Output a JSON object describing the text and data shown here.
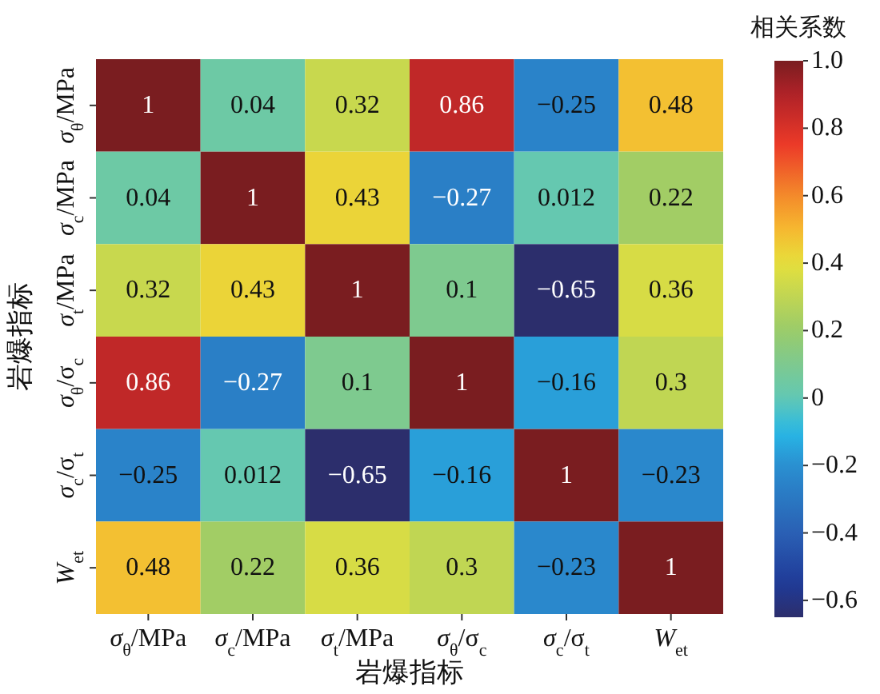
{
  "chart_data": {
    "type": "heatmap",
    "xlabel": "岩爆指标",
    "ylabel": "岩爆指标",
    "clabel": "相关系数",
    "categories": [
      "σ$_{θ}$/MPa",
      "σ$_{c}$/MPa",
      "σ$_{t}$/MPa",
      "σ$_{θ}$/σ$_{c}$",
      "σ$_{c}$/σ$_{t}$",
      "W$_{et}$"
    ],
    "y_categories": [
      "σ$_{θ}$/MPa",
      "σ$_{c}$/MPa",
      "σ$_{t}$/MPa",
      "σ$_{θ}$/σ$_{c}$",
      "σ$_{c}$/σ$_{t}$",
      "W$_{et}$"
    ],
    "cells": [
      [
        1,
        0.04,
        0.32,
        0.86,
        -0.25,
        0.48
      ],
      [
        0.04,
        1,
        0.43,
        -0.27,
        0.012,
        0.22
      ],
      [
        0.32,
        0.43,
        1,
        0.1,
        -0.65,
        0.36
      ],
      [
        0.86,
        -0.27,
        0.1,
        1,
        -0.16,
        0.3
      ],
      [
        -0.25,
        0.012,
        -0.65,
        -0.16,
        1,
        -0.23
      ],
      [
        0.48,
        0.22,
        0.36,
        0.3,
        -0.23,
        1
      ]
    ],
    "data_labels": true,
    "clim": [
      -0.65,
      1
    ],
    "cticks": [
      {
        "value": 1,
        "label": "1.0"
      },
      0.8,
      0.6,
      0.4,
      0.2,
      0,
      -0.2,
      -0.4,
      -0.6
    ]
  }
}
